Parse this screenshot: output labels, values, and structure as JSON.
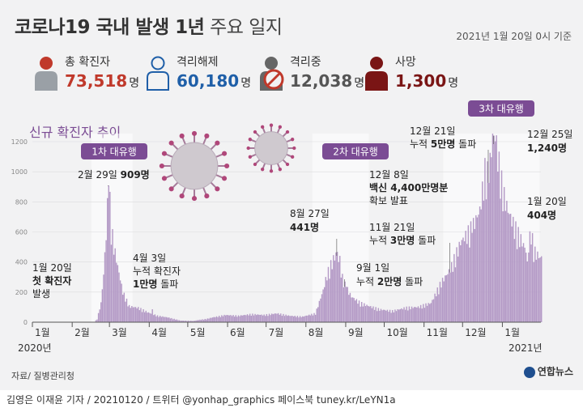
{
  "title_bold": "코로나19 국내 발생 1년",
  "title_light": "주요 일지",
  "basis": "2021년 1월 20일 0시 기준",
  "stats": [
    {
      "label": "총 확진자",
      "value": "73,518",
      "unit": "명",
      "color": "#c0392b",
      "icon": "person-red-icon"
    },
    {
      "label": "격리해제",
      "value": "60,180",
      "unit": "명",
      "color": "#1f5fa8",
      "icon": "person-outline-blue-icon"
    },
    {
      "label": "격리중",
      "value": "12,038",
      "unit": "명",
      "color": "#555555",
      "icon": "person-prohibited-icon"
    },
    {
      "label": "사망",
      "value": "1,300",
      "unit": "명",
      "color": "#7a1515",
      "icon": "person-darkred-icon"
    }
  ],
  "chart_data": {
    "type": "bar",
    "title": "신규 확진자 추이",
    "ylim": [
      0,
      1200
    ],
    "y_ticks": [
      0,
      200,
      400,
      600,
      800,
      1000,
      1200
    ],
    "x_months": [
      "1월",
      "2월",
      "3월",
      "4월",
      "5월",
      "6월",
      "7월",
      "8월",
      "9월",
      "10월",
      "11월",
      "12월",
      "1월"
    ],
    "x_years": [
      "2020년",
      "2021년"
    ],
    "bar_color": "#b49ac6",
    "wave_labels": [
      "1차 대유행",
      "2차 대유행",
      "3차 대유행"
    ],
    "key_points": [
      {
        "date": "2020-01-20",
        "value": 1
      },
      {
        "date": "2020-02-29",
        "value": 909
      },
      {
        "date": "2020-04-03",
        "value": 86
      },
      {
        "date": "2020-08-27",
        "value": 441
      },
      {
        "date": "2020-09-01",
        "value": 235
      },
      {
        "date": "2020-11-21",
        "value": 330
      },
      {
        "date": "2020-12-08",
        "value": 594
      },
      {
        "date": "2020-12-21",
        "value": 926
      },
      {
        "date": "2020-12-25",
        "value": 1240
      },
      {
        "date": "2021-01-20",
        "value": 404
      }
    ],
    "annotations": [
      {
        "lines": [
          "1월 20일",
          "첫 확진자",
          "발생"
        ]
      },
      {
        "lines": [
          "2월 29일 909명"
        ]
      },
      {
        "lines": [
          "4월 3일",
          "누적 확진자",
          "1만명 돌파"
        ]
      },
      {
        "lines": [
          "8월 27일",
          "441명"
        ]
      },
      {
        "lines": [
          "9월 1일",
          "누적 2만명 돌파"
        ]
      },
      {
        "lines": [
          "11월 21일",
          "누적 3만명 돌파"
        ]
      },
      {
        "lines": [
          "12월 8일",
          "백신 4,400만명분",
          "확보 발표"
        ]
      },
      {
        "lines": [
          "12월 21일",
          "누적 5만명 돌파"
        ]
      },
      {
        "lines": [
          "12월 25일",
          "1,240명"
        ]
      },
      {
        "lines": [
          "1월 20일",
          "404명"
        ]
      }
    ]
  },
  "source": "자료/ 질병관리청",
  "credit": "김영은 이재윤 기자 / 20210120 / 트위터 @yonhap_graphics  페이스북 tuney.kr/LeYN1a",
  "logo_text": "연합뉴스"
}
